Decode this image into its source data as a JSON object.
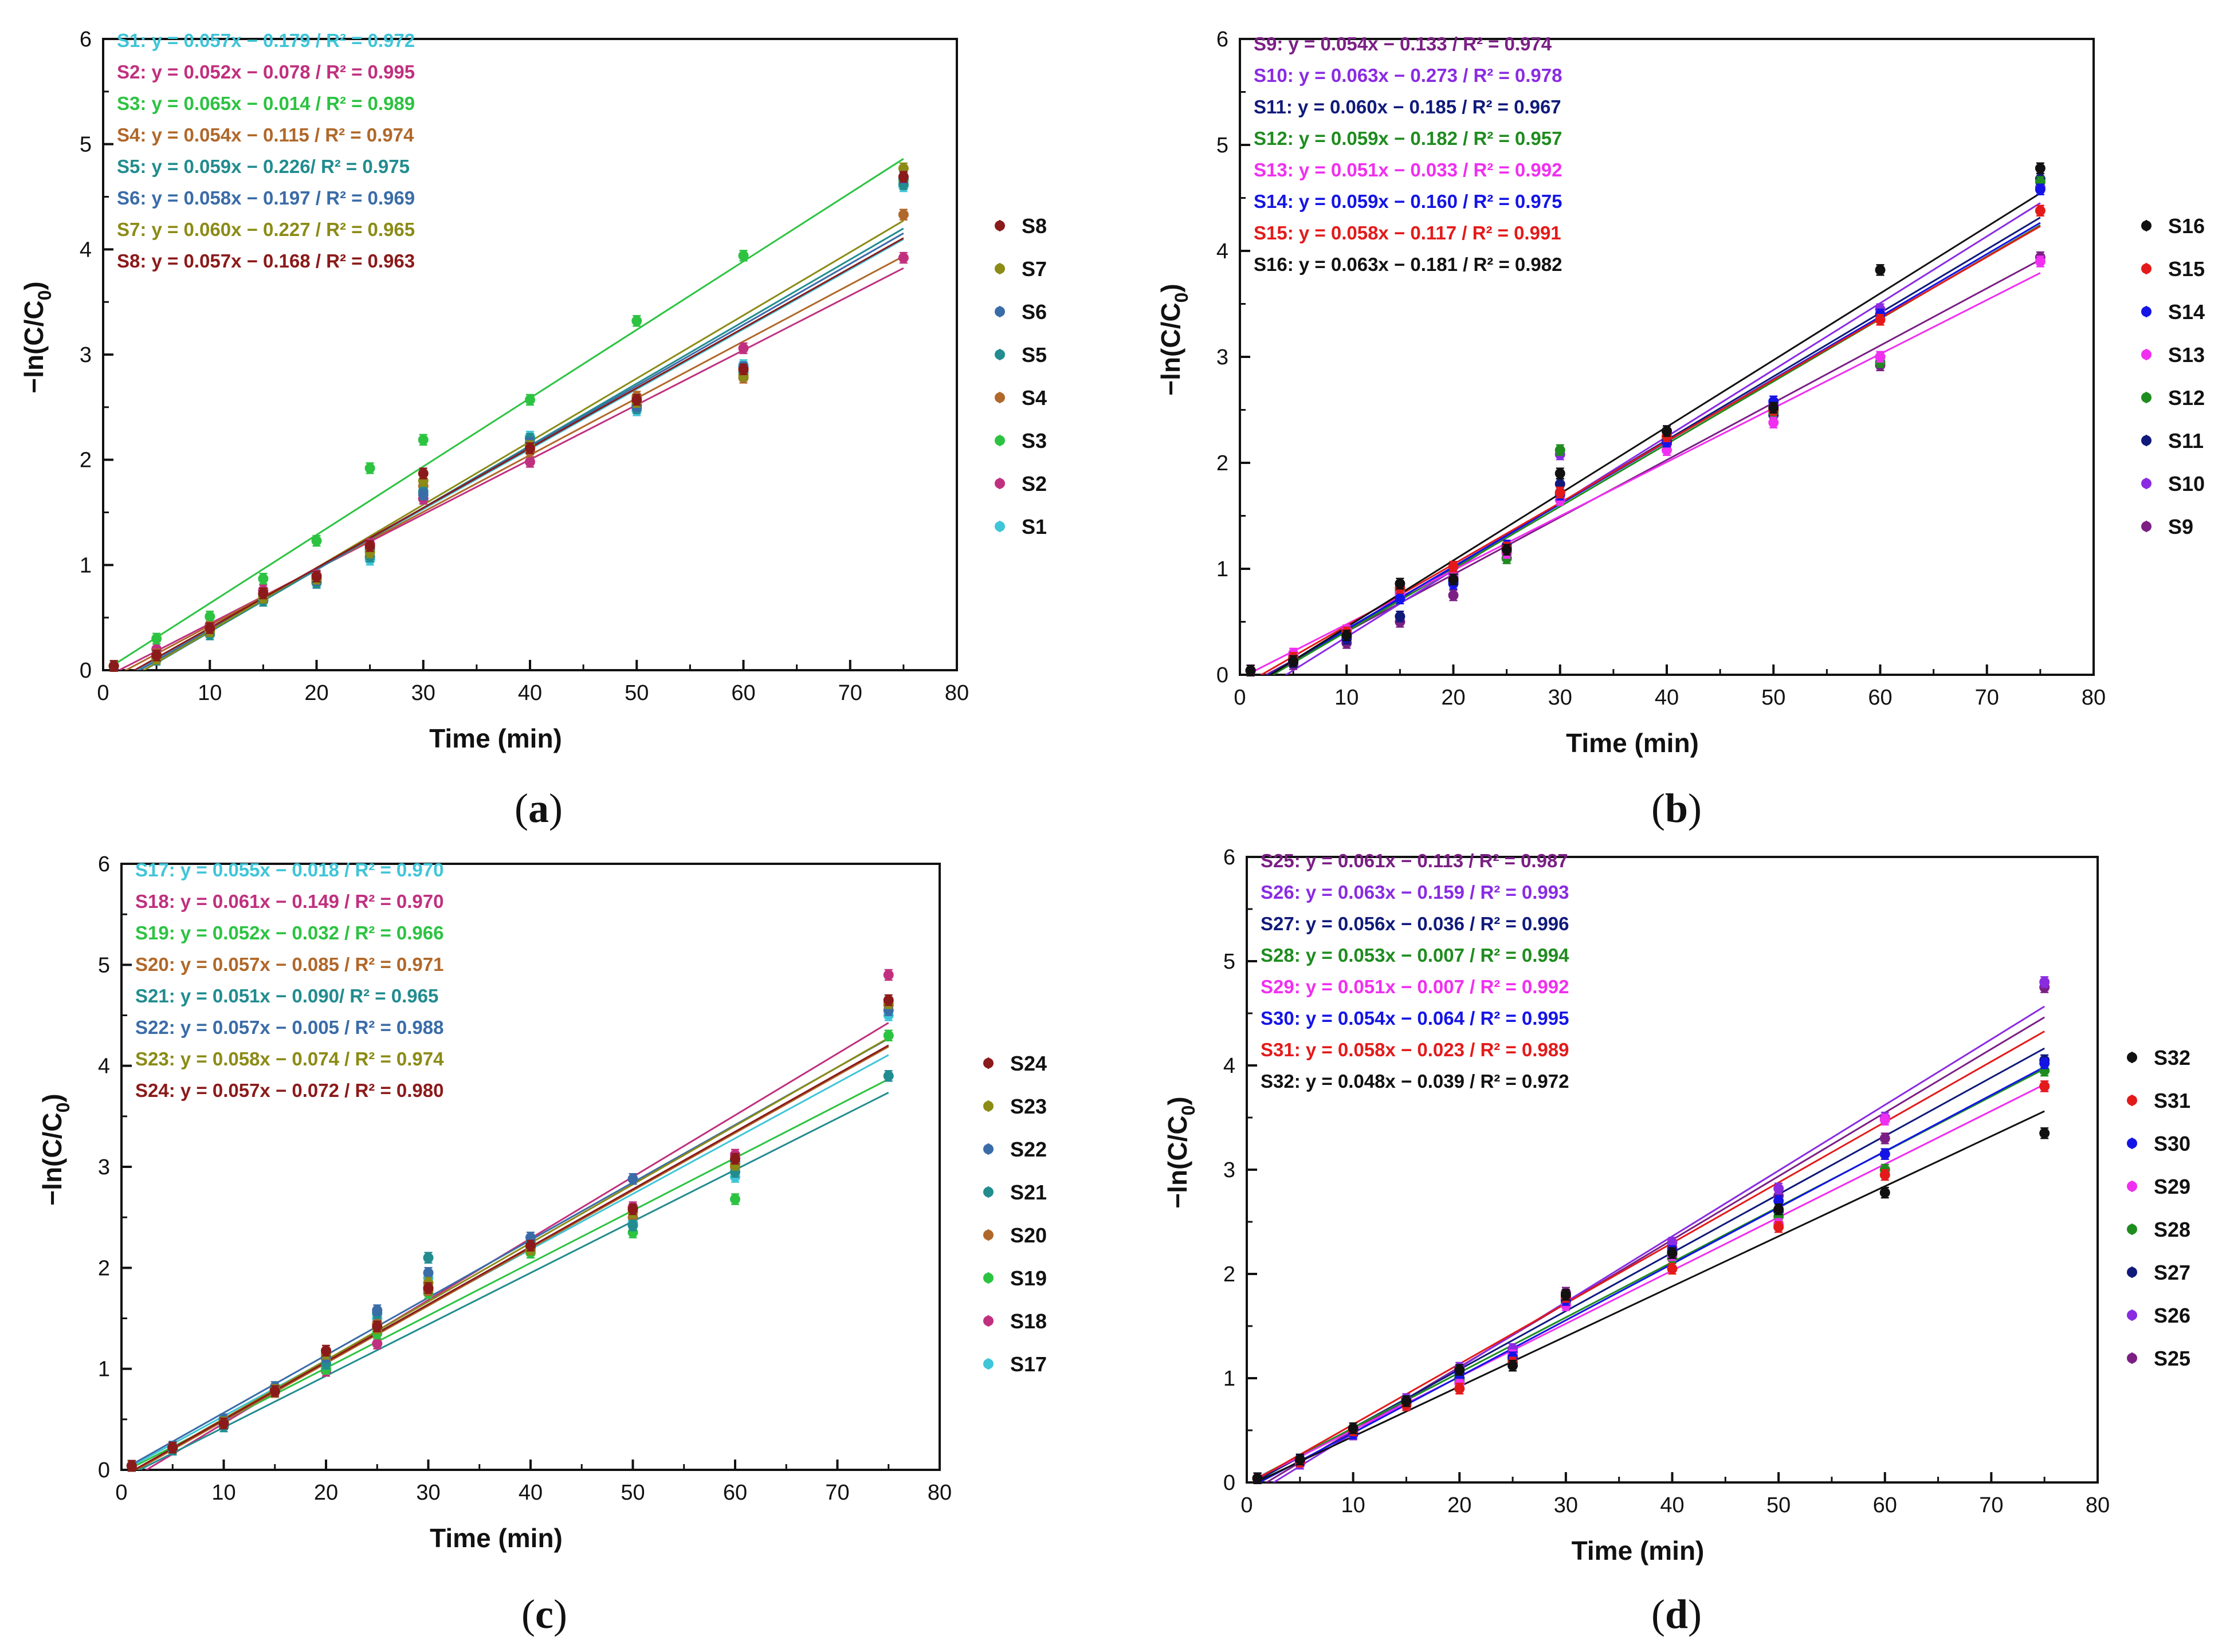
{
  "figure": {
    "axis_x_label": "Time (min)",
    "axis_y_label": "−ln(C/C",
    "axis_y_label_sub": "0",
    "axis_y_label_close": ")"
  },
  "chart_data": [
    {
      "type": "scatter",
      "panel": "a",
      "caption_open": "(",
      "caption_letter": "a",
      "caption_close": ")",
      "xlim": [
        0,
        80
      ],
      "ylim": [
        0,
        6
      ],
      "xticks": [
        0,
        10,
        20,
        30,
        40,
        50,
        60,
        70,
        80
      ],
      "yticks": [
        0,
        1,
        2,
        3,
        4,
        5,
        6
      ],
      "xlabel": "Time (min)",
      "ylabel": "−ln(C/C0)",
      "legend_position": "right",
      "x": [
        1,
        5,
        10,
        15,
        20,
        25,
        30,
        40,
        50,
        60,
        75
      ],
      "series": [
        {
          "name": "S1",
          "color": "#3fc5d8",
          "equation": "S1: y = 0.057x − 0.179 / R² = 0.972",
          "slope": 0.057,
          "intercept": -0.179,
          "values": [
            0.04,
            0.12,
            0.36,
            0.68,
            0.84,
            1.05,
            1.63,
            2.22,
            2.47,
            2.9,
            4.6
          ]
        },
        {
          "name": "S2",
          "color": "#c0307f",
          "equation": "S2: y = 0.052x − 0.078 / R² = 0.995",
          "slope": 0.052,
          "intercept": -0.078,
          "values": [
            0.04,
            0.2,
            0.43,
            0.76,
            0.9,
            1.2,
            1.63,
            1.98,
            2.52,
            3.06,
            3.92
          ]
        },
        {
          "name": "S3",
          "color": "#2cc341",
          "equation": "S3: y = 0.065x − 0.014 / R² = 0.989",
          "slope": 0.065,
          "intercept": -0.014,
          "values": [
            0.04,
            0.3,
            0.51,
            0.87,
            1.23,
            1.92,
            2.19,
            2.57,
            3.32,
            3.94,
            4.66
          ]
        },
        {
          "name": "S4",
          "color": "#b0682a",
          "equation": "S4: y = 0.054x − 0.115 / R² = 0.974",
          "slope": 0.054,
          "intercept": -0.115,
          "values": [
            0.04,
            0.15,
            0.41,
            0.72,
            0.88,
            1.16,
            1.75,
            2.08,
            2.6,
            2.78,
            4.33
          ]
        },
        {
          "name": "S5",
          "color": "#228c8f",
          "equation": "S5: y = 0.059x − 0.226/ R² = 0.975",
          "slope": 0.059,
          "intercept": -0.226,
          "values": [
            0.04,
            0.1,
            0.34,
            0.66,
            0.83,
            1.08,
            1.7,
            2.2,
            2.49,
            2.83,
            4.62
          ]
        },
        {
          "name": "S6",
          "color": "#3a6ca8",
          "equation": "S6: y = 0.058x − 0.197 / R² = 0.969",
          "slope": 0.058,
          "intercept": -0.197,
          "values": [
            0.04,
            0.13,
            0.38,
            0.7,
            0.86,
            1.14,
            1.67,
            2.16,
            2.51,
            2.88,
            4.68
          ]
        },
        {
          "name": "S7",
          "color": "#8b8b16",
          "equation": "S7: y = 0.060x − 0.227 / R² = 0.965",
          "slope": 0.06,
          "intercept": -0.227,
          "values": [
            0.04,
            0.11,
            0.37,
            0.69,
            0.87,
            1.12,
            1.8,
            2.13,
            2.55,
            2.8,
            4.77
          ]
        },
        {
          "name": "S8",
          "color": "#8b1a1a",
          "equation": "S8: y = 0.057x − 0.168 / R² = 0.963",
          "slope": 0.057,
          "intercept": -0.168,
          "values": [
            0.04,
            0.14,
            0.4,
            0.73,
            0.89,
            1.18,
            1.87,
            2.11,
            2.57,
            2.86,
            4.69
          ]
        }
      ]
    },
    {
      "type": "scatter",
      "panel": "b",
      "caption_open": "(",
      "caption_letter": "b",
      "caption_close": ")",
      "xlim": [
        0,
        80
      ],
      "ylim": [
        0,
        6
      ],
      "xticks": [
        0,
        10,
        20,
        30,
        40,
        50,
        60,
        70,
        80
      ],
      "yticks": [
        0,
        1,
        2,
        3,
        4,
        5,
        6
      ],
      "xlabel": "Time (min)",
      "ylabel": "−ln(C/C0)",
      "legend_position": "right",
      "x": [
        1,
        5,
        10,
        15,
        20,
        25,
        30,
        40,
        50,
        60,
        75
      ],
      "series": [
        {
          "name": "S9",
          "color": "#7b1f85",
          "equation": "S9: y = 0.054x − 0.133 / R² = 0.974",
          "slope": 0.054,
          "intercept": -0.133,
          "values": [
            0.04,
            0.1,
            0.3,
            0.5,
            0.75,
            1.1,
            1.72,
            2.18,
            2.5,
            2.92,
            3.94
          ]
        },
        {
          "name": "S10",
          "color": "#8a2be2",
          "equation": "S10: y = 0.063x − 0.273 / R² = 0.978",
          "slope": 0.063,
          "intercept": -0.273,
          "values": [
            0.04,
            0.18,
            0.4,
            0.78,
            0.95,
            1.2,
            2.08,
            2.3,
            2.55,
            3.45,
            4.6
          ]
        },
        {
          "name": "S11",
          "color": "#101a7a",
          "equation": "S11: y = 0.060x − 0.185 / R² = 0.967",
          "slope": 0.06,
          "intercept": -0.185,
          "values": [
            0.04,
            0.12,
            0.34,
            0.55,
            0.88,
            1.15,
            1.8,
            2.2,
            2.45,
            3.0,
            4.68
          ]
        },
        {
          "name": "S12",
          "color": "#1f8c1f",
          "equation": "S12: y = 0.059x − 0.182 / R² = 0.957",
          "slope": 0.059,
          "intercept": -0.182,
          "values": [
            0.04,
            0.15,
            0.38,
            0.8,
            0.92,
            1.1,
            2.12,
            2.22,
            2.48,
            2.95,
            4.65
          ]
        },
        {
          "name": "S13",
          "color": "#f02ff0",
          "equation": "S13: y = 0.051x − 0.033 / R² = 0.992",
          "slope": 0.051,
          "intercept": -0.033,
          "values": [
            0.04,
            0.2,
            0.42,
            0.76,
            0.92,
            1.15,
            1.65,
            2.12,
            2.38,
            3.0,
            3.9
          ]
        },
        {
          "name": "S14",
          "color": "#1414e6",
          "equation": "S14: y = 0.059x − 0.160 / R² = 0.975",
          "slope": 0.059,
          "intercept": -0.16,
          "values": [
            0.04,
            0.14,
            0.36,
            0.72,
            0.86,
            1.22,
            1.7,
            2.2,
            2.58,
            3.4,
            4.58
          ]
        },
        {
          "name": "S15",
          "color": "#e41a1a",
          "equation": "S15: y = 0.058x − 0.117 / R² = 0.991",
          "slope": 0.058,
          "intercept": -0.117,
          "values": [
            0.04,
            0.16,
            0.4,
            0.82,
            1.02,
            1.2,
            1.72,
            2.25,
            2.5,
            3.35,
            4.38
          ]
        },
        {
          "name": "S16",
          "color": "#111111",
          "equation": "S16: y = 0.063x − 0.181 / R² = 0.982",
          "slope": 0.063,
          "intercept": -0.181,
          "values": [
            0.04,
            0.13,
            0.37,
            0.86,
            0.9,
            1.18,
            1.9,
            2.3,
            2.52,
            3.82,
            4.78
          ]
        }
      ]
    },
    {
      "type": "scatter",
      "panel": "c",
      "caption_open": "(",
      "caption_letter": "c",
      "caption_close": ")",
      "xlim": [
        0,
        80
      ],
      "ylim": [
        0,
        6
      ],
      "xticks": [
        0,
        10,
        20,
        30,
        40,
        50,
        60,
        70,
        80
      ],
      "yticks": [
        0,
        1,
        2,
        3,
        4,
        5,
        6
      ],
      "xlabel": "Time (min)",
      "ylabel": "−ln(C/C0)",
      "legend_position": "right",
      "x": [
        1,
        5,
        10,
        15,
        20,
        25,
        30,
        40,
        50,
        60,
        75
      ],
      "series": [
        {
          "name": "S17",
          "color": "#3fc5d8",
          "equation": "S17: y = 0.055x − 0.018 / R² = 0.970",
          "slope": 0.055,
          "intercept": -0.018,
          "values": [
            0.04,
            0.22,
            0.5,
            0.8,
            1.05,
            1.5,
            1.9,
            2.25,
            2.45,
            2.9,
            4.5
          ]
        },
        {
          "name": "S18",
          "color": "#c0307f",
          "equation": "S18: y = 0.061x − 0.149 / R² = 0.970",
          "slope": 0.061,
          "intercept": -0.149,
          "values": [
            0.04,
            0.2,
            0.45,
            0.78,
            0.98,
            1.25,
            1.8,
            2.2,
            2.6,
            3.12,
            4.9
          ]
        },
        {
          "name": "S19",
          "color": "#2cc341",
          "equation": "S19: y = 0.052x − 0.032 / R² = 0.966",
          "slope": 0.052,
          "intercept": -0.032,
          "values": [
            0.04,
            0.21,
            0.48,
            0.8,
            1.0,
            1.35,
            1.75,
            2.15,
            2.35,
            2.68,
            4.3
          ]
        },
        {
          "name": "S20",
          "color": "#b0682a",
          "equation": "S20: y = 0.057x − 0.085 / R² = 0.971",
          "slope": 0.057,
          "intercept": -0.085,
          "values": [
            0.04,
            0.22,
            0.46,
            0.77,
            1.1,
            1.45,
            1.78,
            2.2,
            2.5,
            3.0,
            4.6
          ]
        },
        {
          "name": "S21",
          "color": "#228c8f",
          "equation": "S21: y = 0.051x − 0.090/ R² = 0.965",
          "slope": 0.051,
          "intercept": -0.09,
          "values": [
            0.04,
            0.2,
            0.43,
            0.8,
            1.05,
            1.55,
            2.1,
            2.25,
            2.42,
            2.95,
            3.9
          ]
        },
        {
          "name": "S22",
          "color": "#3a6ca8",
          "equation": "S22: y = 0.057x − 0.005 / R² = 0.988",
          "slope": 0.057,
          "intercept": -0.005,
          "values": [
            0.04,
            0.23,
            0.5,
            0.82,
            1.12,
            1.58,
            1.95,
            2.3,
            2.88,
            3.05,
            4.55
          ]
        },
        {
          "name": "S23",
          "color": "#8b8b16",
          "equation": "S23: y = 0.058x − 0.074 / R² = 0.974",
          "slope": 0.058,
          "intercept": -0.074,
          "values": [
            0.04,
            0.22,
            0.47,
            0.79,
            1.15,
            1.4,
            1.85,
            2.18,
            2.55,
            3.02,
            4.62
          ]
        },
        {
          "name": "S24",
          "color": "#8b1a1a",
          "equation": "S24: y = 0.057x − 0.072 / R² = 0.980",
          "slope": 0.057,
          "intercept": -0.072,
          "values": [
            0.04,
            0.22,
            0.46,
            0.78,
            1.18,
            1.42,
            1.8,
            2.22,
            2.58,
            3.08,
            4.65
          ]
        }
      ]
    },
    {
      "type": "scatter",
      "panel": "d",
      "caption_open": "(",
      "caption_letter": "d",
      "caption_close": ")",
      "xlim": [
        0,
        80
      ],
      "ylim": [
        0,
        6
      ],
      "xticks": [
        0,
        10,
        20,
        30,
        40,
        50,
        60,
        70,
        80
      ],
      "yticks": [
        0,
        1,
        2,
        3,
        4,
        5,
        6
      ],
      "xlabel": "Time (min)",
      "ylabel": "−ln(C/C0)",
      "legend_position": "right",
      "x": [
        1,
        5,
        10,
        15,
        20,
        25,
        30,
        40,
        50,
        60,
        75
      ],
      "series": [
        {
          "name": "S25",
          "color": "#7b1f85",
          "equation": "S25: y = 0.061x − 0.113 / R² = 0.987",
          "slope": 0.061,
          "intercept": -0.113,
          "values": [
            0.04,
            0.2,
            0.48,
            0.78,
            1.05,
            1.25,
            1.82,
            2.25,
            2.75,
            3.3,
            4.75
          ]
        },
        {
          "name": "S26",
          "color": "#8a2be2",
          "equation": "S26: y = 0.063x − 0.159 / R² = 0.993",
          "slope": 0.063,
          "intercept": -0.159,
          "values": [
            0.04,
            0.18,
            0.46,
            0.8,
            1.1,
            1.28,
            1.78,
            2.3,
            2.82,
            3.5,
            4.8
          ]
        },
        {
          "name": "S27",
          "color": "#101a7a",
          "equation": "S27: y = 0.056x − 0.036 / R² = 0.996",
          "slope": 0.056,
          "intercept": -0.036,
          "values": [
            0.04,
            0.22,
            0.5,
            0.76,
            1.0,
            1.2,
            1.75,
            2.2,
            2.6,
            3.15,
            4.05
          ]
        },
        {
          "name": "S28",
          "color": "#1f8c1f",
          "equation": "S28: y = 0.053x − 0.007 / R² = 0.994",
          "slope": 0.053,
          "intercept": -0.007,
          "values": [
            0.04,
            0.21,
            0.49,
            0.77,
            0.97,
            1.18,
            1.72,
            2.15,
            2.55,
            3.0,
            3.95
          ]
        },
        {
          "name": "S29",
          "color": "#f02ff0",
          "equation": "S29: y = 0.051x − 0.007 / R² = 0.992",
          "slope": 0.051,
          "intercept": -0.007,
          "values": [
            0.04,
            0.2,
            0.48,
            0.75,
            0.95,
            1.22,
            1.7,
            2.18,
            2.48,
            3.48,
            3.8
          ]
        },
        {
          "name": "S30",
          "color": "#1414e6",
          "equation": "S30: y = 0.054x − 0.064 / R² = 0.995",
          "slope": 0.054,
          "intercept": -0.064,
          "values": [
            0.04,
            0.21,
            0.47,
            0.78,
            1.05,
            1.2,
            1.75,
            2.22,
            2.7,
            3.15,
            4.02
          ]
        },
        {
          "name": "S31",
          "color": "#e41a1a",
          "equation": "S31: y = 0.058x − 0.023 / R² = 0.989",
          "slope": 0.058,
          "intercept": -0.023,
          "values": [
            0.04,
            0.2,
            0.5,
            0.74,
            0.9,
            1.15,
            1.78,
            2.05,
            2.45,
            2.95,
            3.8
          ]
        },
        {
          "name": "S32",
          "color": "#111111",
          "equation": "S32: y = 0.048x − 0.039 / R² = 0.972",
          "slope": 0.048,
          "intercept": -0.039,
          "values": [
            0.04,
            0.22,
            0.52,
            0.78,
            1.08,
            1.12,
            1.8,
            2.2,
            2.62,
            2.78,
            3.35
          ]
        }
      ]
    }
  ]
}
